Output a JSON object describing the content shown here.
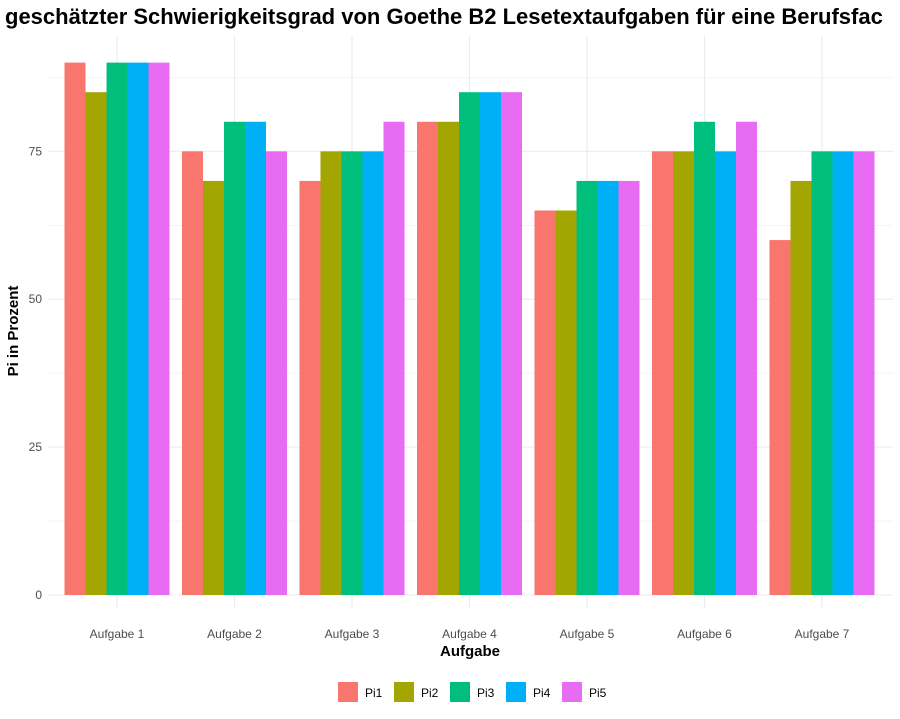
{
  "chart_data": {
    "type": "bar",
    "title": "geschätzter Schwierigkeitsgrad von Goethe B2 Lesetextaufgaben für eine Berufsfac",
    "xlabel": "Aufgabe",
    "ylabel": "Pi in Prozent",
    "categories": [
      "Aufgabe 1",
      "Aufgabe 2",
      "Aufgabe 3",
      "Aufgabe 4",
      "Aufgabe 5",
      "Aufgabe 6",
      "Aufgabe 7"
    ],
    "series": [
      {
        "name": "Pi1",
        "color": "#F8766D",
        "values": [
          90,
          75,
          70,
          80,
          65,
          75,
          60
        ]
      },
      {
        "name": "Pi2",
        "color": "#A3A500",
        "values": [
          85,
          70,
          75,
          80,
          65,
          75,
          70
        ]
      },
      {
        "name": "Pi3",
        "color": "#00BF7D",
        "values": [
          90,
          80,
          75,
          85,
          70,
          80,
          75
        ]
      },
      {
        "name": "Pi4",
        "color": "#00B0F6",
        "values": [
          90,
          80,
          75,
          85,
          70,
          75,
          75
        ]
      },
      {
        "name": "Pi5",
        "color": "#E76BF3",
        "values": [
          90,
          75,
          80,
          85,
          70,
          80,
          75
        ]
      }
    ],
    "ylim": [
      0,
      94.5
    ],
    "yticks": [
      0,
      25,
      50,
      75
    ],
    "grid": true,
    "legend_position": "bottom"
  }
}
